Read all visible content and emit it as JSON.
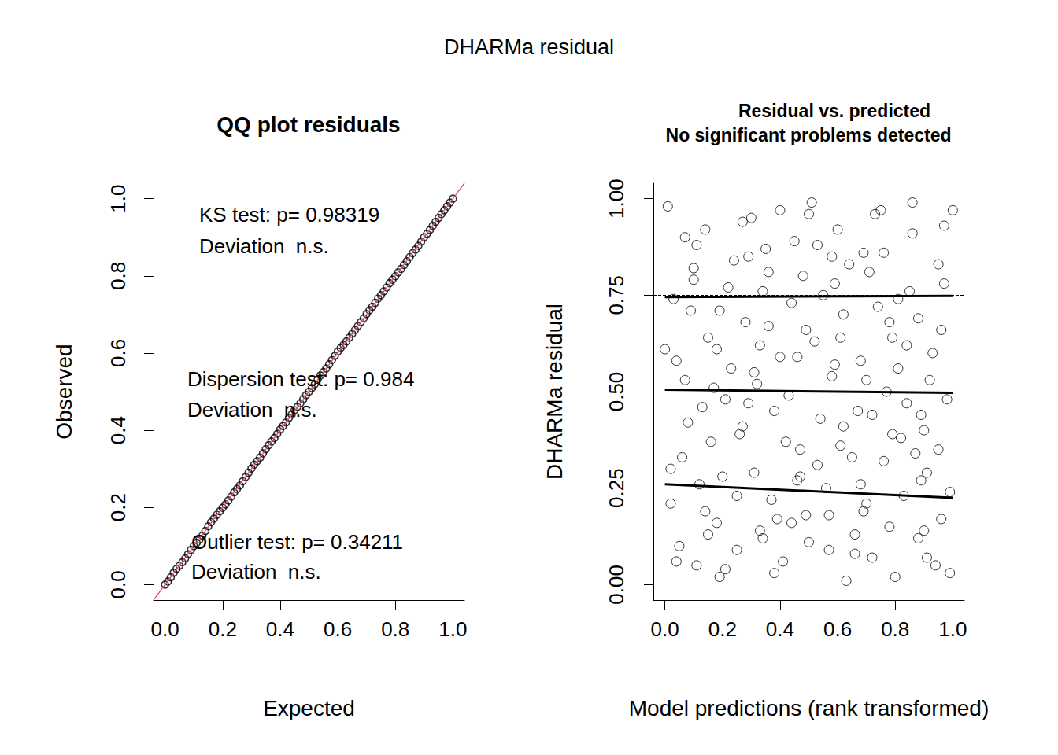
{
  "title": "DHARMa residual",
  "chart_data": [
    {
      "type": "scatter",
      "title": "QQ plot residuals",
      "x_label": "Expected",
      "y_label": "Observed",
      "x": [
        0.0,
        0.01,
        0.02,
        0.03,
        0.04,
        0.05,
        0.06,
        0.07,
        0.08,
        0.09,
        0.1,
        0.11,
        0.12,
        0.13,
        0.14,
        0.15,
        0.16,
        0.17,
        0.18,
        0.19,
        0.2,
        0.21,
        0.22,
        0.23,
        0.24,
        0.25,
        0.26,
        0.27,
        0.28,
        0.29,
        0.3,
        0.31,
        0.32,
        0.33,
        0.34,
        0.35,
        0.36,
        0.37,
        0.38,
        0.39,
        0.4,
        0.41,
        0.42,
        0.43,
        0.44,
        0.45,
        0.46,
        0.47,
        0.48,
        0.49,
        0.5,
        0.51,
        0.52,
        0.53,
        0.54,
        0.55,
        0.56,
        0.57,
        0.58,
        0.59,
        0.6,
        0.61,
        0.62,
        0.63,
        0.64,
        0.65,
        0.66,
        0.67,
        0.68,
        0.69,
        0.7,
        0.71,
        0.72,
        0.73,
        0.74,
        0.75,
        0.76,
        0.77,
        0.78,
        0.79,
        0.8,
        0.81,
        0.82,
        0.83,
        0.84,
        0.85,
        0.86,
        0.87,
        0.88,
        0.89,
        0.9,
        0.91,
        0.92,
        0.93,
        0.94,
        0.95,
        0.96,
        0.97,
        0.98,
        0.99,
        1.0
      ],
      "values": [
        0.0,
        0.008,
        0.019,
        0.031,
        0.041,
        0.049,
        0.058,
        0.068,
        0.079,
        0.09,
        0.1,
        0.108,
        0.117,
        0.127,
        0.139,
        0.151,
        0.162,
        0.171,
        0.181,
        0.19,
        0.199,
        0.208,
        0.218,
        0.228,
        0.239,
        0.248,
        0.257,
        0.268,
        0.279,
        0.29,
        0.301,
        0.311,
        0.32,
        0.329,
        0.34,
        0.351,
        0.361,
        0.371,
        0.38,
        0.391,
        0.402,
        0.411,
        0.42,
        0.431,
        0.441,
        0.452,
        0.461,
        0.47,
        0.48,
        0.491,
        0.5,
        0.509,
        0.519,
        0.531,
        0.542,
        0.551,
        0.56,
        0.571,
        0.582,
        0.593,
        0.604,
        0.613,
        0.621,
        0.63,
        0.64,
        0.65,
        0.66,
        0.67,
        0.68,
        0.69,
        0.701,
        0.711,
        0.72,
        0.73,
        0.741,
        0.75,
        0.76,
        0.77,
        0.781,
        0.79,
        0.799,
        0.809,
        0.818,
        0.828,
        0.838,
        0.849,
        0.859,
        0.868,
        0.878,
        0.889,
        0.9,
        0.909,
        0.919,
        0.93,
        0.94,
        0.95,
        0.96,
        0.97,
        0.98,
        0.99,
        1.0
      ],
      "color": "#000000",
      "marker": "circle",
      "xlim": [
        -0.04,
        1.04
      ],
      "ylim": [
        -0.04,
        1.04
      ],
      "xticks": [
        {
          "value": 0,
          "label": "0.0"
        },
        0.2,
        0.4,
        0.6,
        0.8,
        {
          "value": 1,
          "label": "1.0"
        }
      ],
      "yticks": [
        {
          "value": 0,
          "label": "0.0"
        },
        0.2,
        0.4,
        0.6,
        0.8,
        {
          "value": 1,
          "label": "1.0"
        }
      ],
      "reference_line": {
        "x": [
          -0.04,
          1.04
        ],
        "values": [
          -0.04,
          1.04
        ],
        "color": "#DF536B"
      },
      "annotations": [
        "KS test: p= 0.98319",
        "Deviation  n.s.",
        "Dispersion test: p= 0.984",
        "Deviation  n.s.",
        "Outlier test: p= 0.34211",
        "Deviation  n.s."
      ],
      "grid": false
    },
    {
      "type": "scatter",
      "title": "Residual vs. predicted",
      "subtitle": "No significant problems detected",
      "x_label": "Model predictions (rank transformed)",
      "y_label": "DHARMa residual",
      "x": [
        0.01,
        0.08,
        0.15,
        0.22,
        0.31,
        0.38,
        0.45,
        0.53,
        0.61,
        0.69,
        0.76,
        0.84,
        0.91,
        0.97,
        0.04,
        0.12,
        0.19,
        0.27,
        0.34,
        0.42,
        0.49,
        0.57,
        0.64,
        0.72,
        0.8,
        0.88,
        0.95,
        0.02,
        0.1,
        0.17,
        0.25,
        0.33,
        0.4,
        0.47,
        0.55,
        0.62,
        0.7,
        0.78,
        0.86,
        0.93,
        0.99,
        0.06,
        0.14,
        0.21,
        0.29,
        0.36,
        0.44,
        0.51,
        0.59,
        0.66,
        0.74,
        0.82,
        0.89,
        0.96,
        0.03,
        0.11,
        0.18,
        0.26,
        0.35,
        0.43,
        0.5,
        0.58,
        0.65,
        0.73,
        0.81,
        0.9,
        0.97,
        0.07,
        0.13,
        0.2,
        0.28,
        0.37,
        0.46,
        0.54,
        0.63,
        0.71,
        0.79,
        0.87,
        0.94,
        0.05,
        0.16,
        0.24,
        0.32,
        0.39,
        0.48,
        0.56,
        0.67,
        0.75,
        0.83,
        0.92,
        0.0,
        0.09,
        0.23,
        0.3,
        0.41,
        0.52,
        0.6,
        0.68,
        0.77,
        0.85,
        0.98,
        0.14,
        0.27,
        0.36,
        0.47,
        0.58,
        0.66,
        0.79,
        0.88,
        0.95,
        0.02,
        0.11,
        0.19,
        0.33,
        0.44,
        0.53,
        0.62,
        0.72,
        0.84,
        0.91,
        0.07,
        0.18,
        0.29,
        0.38,
        0.5,
        0.61,
        0.7,
        0.81,
        0.89,
        1.0,
        0.04,
        0.15,
        0.25,
        0.34,
        0.46,
        0.57,
        0.68,
        0.76,
        0.86,
        0.96,
        0.1,
        0.21,
        0.31,
        0.4,
        0.49,
        0.59,
        0.69,
        0.78,
        0.9,
        0.99
      ],
      "values": [
        0.98,
        0.42,
        0.13,
        0.77,
        0.55,
        0.03,
        0.89,
        0.31,
        0.64,
        0.19,
        0.86,
        0.47,
        0.07,
        0.93,
        0.58,
        0.26,
        0.71,
        0.94,
        0.12,
        0.37,
        0.66,
        0.18,
        0.83,
        0.44,
        0.02,
        0.69,
        0.35,
        0.21,
        0.79,
        0.51,
        0.09,
        0.62,
        0.97,
        0.28,
        0.75,
        0.41,
        0.53,
        0.15,
        0.91,
        0.6,
        0.24,
        0.33,
        0.92,
        0.04,
        0.47,
        0.81,
        0.16,
        0.99,
        0.57,
        0.08,
        0.72,
        0.38,
        0.27,
        0.66,
        0.74,
        0.05,
        0.61,
        0.39,
        0.87,
        0.49,
        0.11,
        0.85,
        0.33,
        0.96,
        0.56,
        0.14,
        0.78,
        0.9,
        0.46,
        0.28,
        0.68,
        0.22,
        0.59,
        0.43,
        0.01,
        0.81,
        0.64,
        0.34,
        0.05,
        0.1,
        0.37,
        0.84,
        0.52,
        0.17,
        0.8,
        0.25,
        0.45,
        0.97,
        0.23,
        0.53,
        0.61,
        0.71,
        0.56,
        0.95,
        0.06,
        0.63,
        0.92,
        0.26,
        0.5,
        0.76,
        0.48,
        0.19,
        0.41,
        0.67,
        0.35,
        0.54,
        0.13,
        0.39,
        0.12,
        0.83,
        0.3,
        0.88,
        0.02,
        0.14,
        0.73,
        0.88,
        0.7,
        0.07,
        0.62,
        0.29,
        0.53,
        0.16,
        0.85,
        0.45,
        0.96,
        0.36,
        0.21,
        0.74,
        0.44,
        0.97,
        0.06,
        0.64,
        0.23,
        0.76,
        0.27,
        0.09,
        0.58,
        0.32,
        0.99,
        0.17,
        0.82,
        0.48,
        0.29,
        0.59,
        0.18,
        0.78,
        0.86,
        0.68,
        0.4,
        0.03
      ],
      "color": "#000000",
      "marker": "circle",
      "xlim": [
        -0.04,
        1.04
      ],
      "ylim": [
        -0.04,
        1.04
      ],
      "xticks": [
        {
          "value": 0,
          "label": "0.0"
        },
        0.2,
        0.4,
        0.6,
        0.8,
        {
          "value": 1,
          "label": "1.0"
        }
      ],
      "yticks": [
        {
          "value": 0,
          "label": "0.00"
        },
        {
          "value": 0.25,
          "label": "0.25"
        },
        {
          "value": 0.5,
          "label": "0.50"
        },
        {
          "value": 0.75,
          "label": "0.75"
        },
        {
          "value": 1,
          "label": "1.00"
        }
      ],
      "quantile_lines": [
        {
          "x": [
            0,
            1
          ],
          "values": [
            0.26,
            0.225
          ]
        },
        {
          "x": [
            0,
            1
          ],
          "values": [
            0.505,
            0.497
          ]
        },
        {
          "x": [
            0,
            1
          ],
          "values": [
            0.745,
            0.748
          ]
        }
      ],
      "reference_lines": {
        "values": [
          0.25,
          0.5,
          0.75
        ],
        "line_style": "dashed"
      },
      "grid": false
    }
  ]
}
